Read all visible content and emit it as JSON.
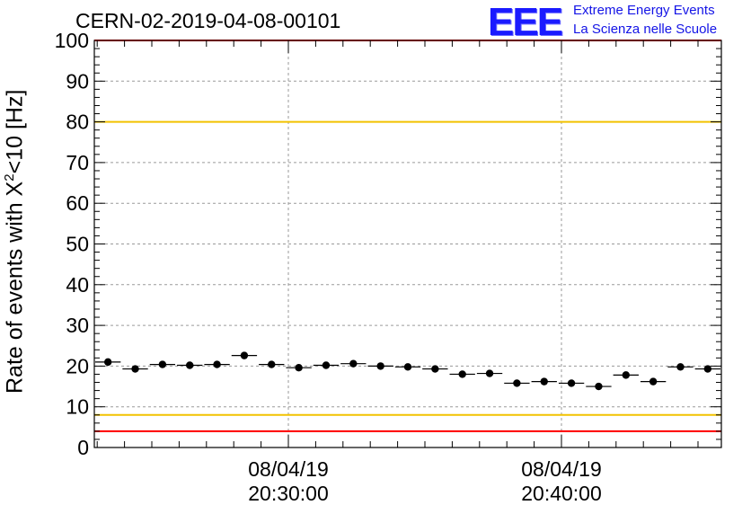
{
  "title": "CERN-02-2019-04-08-00101",
  "logo": {
    "mark": "EEE",
    "line1": "Extreme Energy Events",
    "line2": "La Scienza nelle Scuole",
    "color": "#1a1aff"
  },
  "chart_data": {
    "type": "scatter",
    "ylabel_prefix": "Rate of events with ",
    "ylabel_chi": "X",
    "ylabel_sup": "2",
    "ylabel_suffix": "<10 [Hz]",
    "ylim": [
      0,
      100
    ],
    "yticks": [
      0,
      10,
      20,
      30,
      40,
      50,
      60,
      70,
      80,
      90,
      100
    ],
    "grid": true,
    "x_ticks": [
      {
        "date": "08/04/19",
        "time": "20:30:00"
      },
      {
        "date": "08/04/19",
        "time": "20:40:00"
      }
    ],
    "reference_lines": [
      {
        "y": 100,
        "color": "#ff0000"
      },
      {
        "y": 80,
        "color": "#f2c200"
      },
      {
        "y": 8,
        "color": "#f2c200"
      },
      {
        "y": 4,
        "color": "#ff0000"
      }
    ],
    "series": [
      {
        "values": [
          21.0,
          19.3,
          20.4,
          20.2,
          20.4,
          22.6,
          20.4,
          19.6,
          20.2,
          20.6,
          20.0,
          19.8,
          19.3,
          18.0,
          18.2,
          15.8,
          16.2,
          15.8,
          15.0,
          17.8,
          16.2,
          19.8,
          19.3
        ]
      }
    ],
    "marker_color": "#000000"
  }
}
